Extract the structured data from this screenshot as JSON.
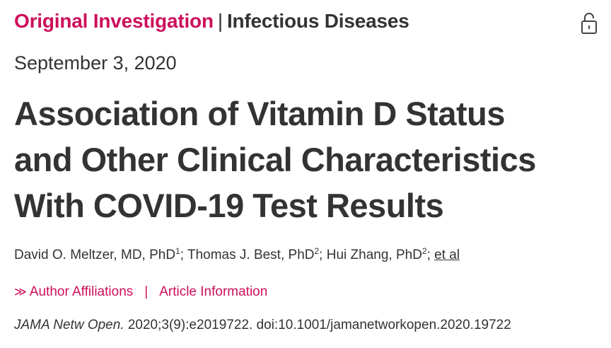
{
  "header": {
    "category": "Original Investigation",
    "separator": "|",
    "topic": "Infectious Diseases",
    "lock_icon": "unlock-icon"
  },
  "date": "September 3, 2020",
  "title_lines": [
    "Association of Vitamin D Status",
    "and Other Clinical Characteristics",
    "With COVID-19 Test Results"
  ],
  "authors": {
    "list": [
      {
        "name": "David O. Meltzer, MD, PhD",
        "sup": "1",
        "after": "; "
      },
      {
        "name": "Thomas J. Best, PhD",
        "sup": "2",
        "after": "; "
      },
      {
        "name": "Hui Zhang, PhD",
        "sup": "2",
        "after": "; "
      }
    ],
    "et_al": "et al"
  },
  "links": {
    "chevron": "≫",
    "affiliations": "Author Affiliations",
    "separator": "|",
    "article_info": "Article Information"
  },
  "citation": {
    "journal": "JAMA Netw Open.",
    "details": " 2020;3(9):e2019722. doi:10.1001/jamanetworkopen.2020.19722"
  },
  "colors": {
    "accent": "#cc0f5b",
    "text": "#333333"
  }
}
